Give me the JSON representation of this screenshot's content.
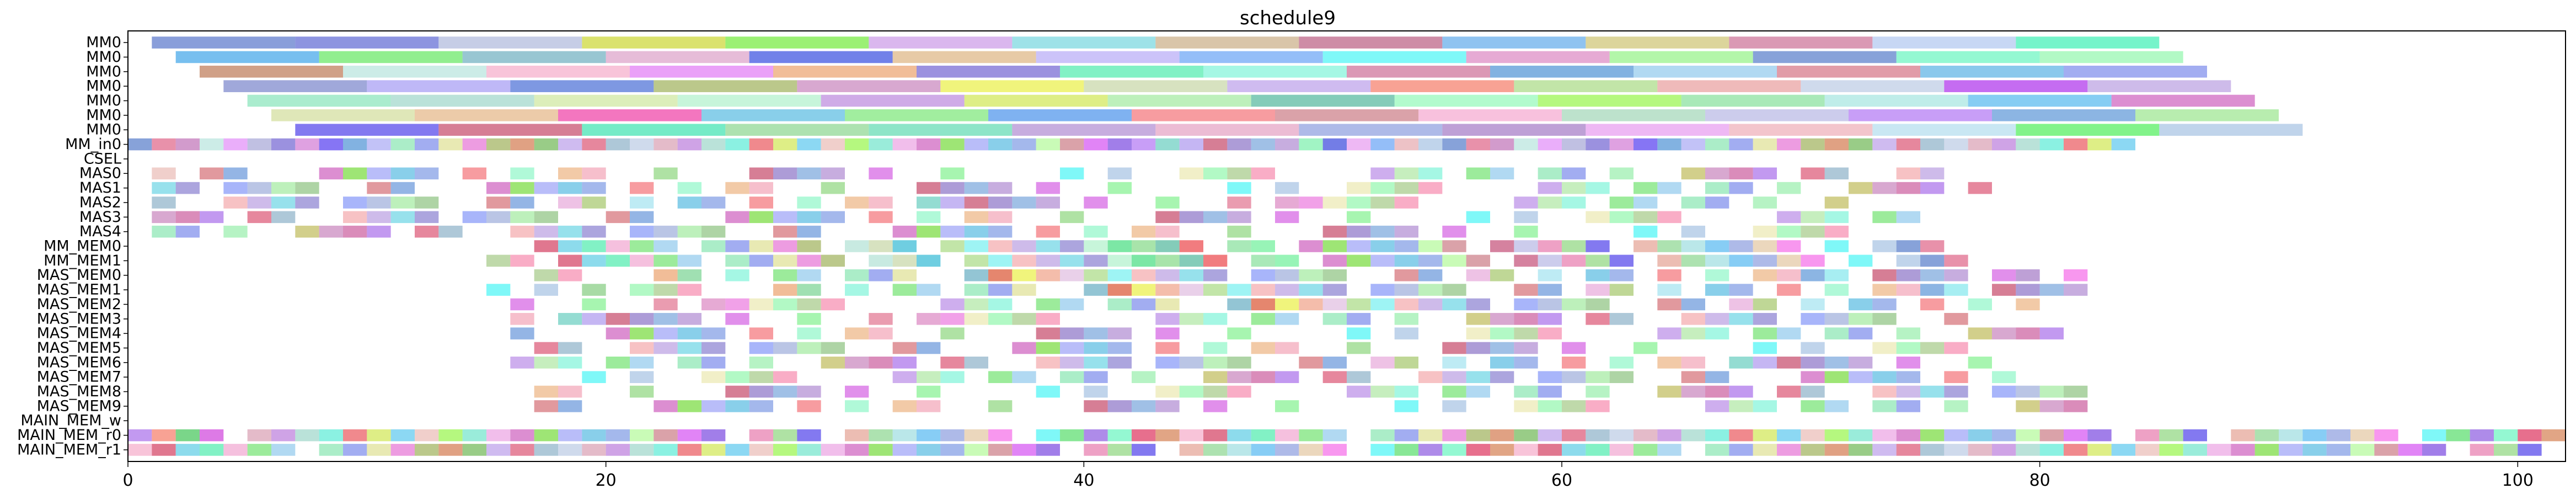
{
  "chart_data": {
    "type": "gantt",
    "title": "schedule9",
    "xlabel": "",
    "ylabel": "",
    "xlim": [
      0,
      102
    ],
    "x_ticks": [
      0,
      20,
      40,
      60,
      80,
      100
    ],
    "grid": false,
    "legend": "none",
    "rows": [
      "MM0",
      "MM0",
      "MM0",
      "MM0",
      "MM0",
      "MM0",
      "MM0",
      "MM_in0",
      "CSEL",
      "MAS0",
      "MAS1",
      "MAS2",
      "MAS3",
      "MAS4",
      "MM_MEM0",
      "MM_MEM1",
      "MAS_MEM0",
      "MAS_MEM1",
      "MAS_MEM2",
      "MAS_MEM3",
      "MAS_MEM4",
      "MAS_MEM5",
      "MAS_MEM6",
      "MAS_MEM7",
      "MAS_MEM8",
      "MAS_MEM9",
      "MAIN_MEM_w",
      "MAIN_MEM_r0",
      "MAIN_MEM_r1"
    ],
    "mm_tasks": [
      {
        "row": 0,
        "starts": [
          1,
          7,
          13,
          19,
          25,
          31,
          37,
          43,
          49,
          55,
          61,
          67,
          73,
          79
        ],
        "duration": 6
      },
      {
        "row": 1,
        "starts": [
          2,
          8,
          14,
          20,
          26,
          32,
          38,
          44,
          50,
          56,
          62,
          68,
          74,
          80
        ],
        "duration": 6
      },
      {
        "row": 2,
        "starts": [
          3,
          9,
          15,
          21,
          27,
          33,
          39,
          45,
          51,
          57,
          63,
          69,
          75,
          81
        ],
        "duration": 6
      },
      {
        "row": 3,
        "starts": [
          4,
          10,
          16,
          22,
          28,
          34,
          40,
          46,
          52,
          58,
          64,
          70,
          76,
          82
        ],
        "duration": 6
      },
      {
        "row": 4,
        "starts": [
          5,
          11,
          17,
          23,
          29,
          35,
          41,
          47,
          53,
          59,
          65,
          71,
          77,
          83
        ],
        "duration": 6
      },
      {
        "row": 5,
        "starts": [
          6,
          12,
          18,
          24,
          30,
          36,
          42,
          48,
          54,
          60,
          66,
          72,
          78,
          84
        ],
        "duration": 6
      },
      {
        "row": 6,
        "starts": [
          7,
          13,
          19,
          25,
          31,
          37,
          43,
          49,
          55,
          61,
          67,
          73,
          79,
          85
        ],
        "duration": 6
      }
    ],
    "unit_tasks": [
      {
        "row": 7,
        "start": 0,
        "end": 84,
        "density": 1.0
      },
      {
        "row": 9,
        "start": 1,
        "end": 76,
        "density": 0.55
      },
      {
        "row": 10,
        "start": 1,
        "end": 78,
        "density": 0.55
      },
      {
        "row": 11,
        "start": 1,
        "end": 72,
        "density": 0.6
      },
      {
        "row": 12,
        "start": 1,
        "end": 76,
        "density": 0.55
      },
      {
        "row": 13,
        "start": 1,
        "end": 72,
        "density": 0.55
      },
      {
        "row": 14,
        "start": 16,
        "end": 78,
        "density": 0.85
      },
      {
        "row": 15,
        "start": 15,
        "end": 78,
        "density": 0.85
      },
      {
        "row": 16,
        "start": 16,
        "end": 83,
        "density": 0.7
      },
      {
        "row": 17,
        "start": 15,
        "end": 83,
        "density": 0.7
      },
      {
        "row": 18,
        "start": 16,
        "end": 80,
        "density": 0.65
      },
      {
        "row": 19,
        "start": 16,
        "end": 77,
        "density": 0.6
      },
      {
        "row": 20,
        "start": 16,
        "end": 81,
        "density": 0.55
      },
      {
        "row": 21,
        "start": 16,
        "end": 80,
        "density": 0.55
      },
      {
        "row": 22,
        "start": 15,
        "end": 79,
        "density": 0.6
      },
      {
        "row": 23,
        "start": 16,
        "end": 79,
        "density": 0.55
      },
      {
        "row": 24,
        "start": 16,
        "end": 83,
        "density": 0.55
      },
      {
        "row": 25,
        "start": 16,
        "end": 82,
        "density": 0.55
      },
      {
        "row": 27,
        "start": 0,
        "end": 102,
        "density": 0.95
      },
      {
        "row": 28,
        "start": 0,
        "end": 102,
        "density": 0.95
      }
    ]
  }
}
